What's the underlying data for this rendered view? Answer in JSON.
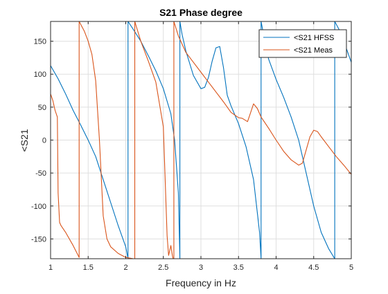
{
  "chart_data": {
    "type": "line",
    "title": "S21 Phase degree",
    "xlabel": "Frequency in Hz",
    "ylabel": "<S21",
    "xlim": [
      1,
      5
    ],
    "ylim": [
      -180,
      180
    ],
    "xticks": [
      1,
      1.5,
      2,
      2.5,
      3,
      3.5,
      4,
      4.5,
      5
    ],
    "yticks": [
      -150,
      -100,
      -50,
      0,
      50,
      100,
      150
    ],
    "xtick_labels": [
      "1",
      "1.5",
      "2",
      "2.5",
      "3",
      "3.5",
      "4",
      "4.5",
      "5"
    ],
    "ytick_labels": [
      "-150",
      "-100",
      "-50",
      "0",
      "50",
      "100",
      "150"
    ],
    "grid": true,
    "legend_position": "top-right",
    "series": [
      {
        "name": "<S21 HFSS",
        "color": "#0072BD",
        "x": [
          1.0,
          1.1,
          1.2,
          1.3,
          1.4,
          1.5,
          1.6,
          1.7,
          1.8,
          1.9,
          2.0,
          2.03,
          2.03,
          2.1,
          2.2,
          2.3,
          2.4,
          2.5,
          2.6,
          2.65,
          2.7,
          2.72,
          2.72,
          2.75,
          2.8,
          2.9,
          3.0,
          3.05,
          3.1,
          3.15,
          3.2,
          3.25,
          3.3,
          3.35,
          3.4,
          3.5,
          3.6,
          3.7,
          3.78,
          3.8,
          3.8,
          3.85,
          3.9,
          4.0,
          4.1,
          4.2,
          4.3,
          4.4,
          4.5,
          4.6,
          4.7,
          4.78,
          4.78,
          4.85,
          4.9,
          5.0
        ],
        "y": [
          113,
          93,
          70,
          45,
          23,
          0,
          -25,
          -60,
          -95,
          -130,
          -162,
          -180,
          180,
          168,
          150,
          128,
          105,
          78,
          40,
          0,
          -80,
          -180,
          180,
          160,
          135,
          98,
          78,
          80,
          95,
          120,
          140,
          142,
          110,
          68,
          52,
          25,
          -10,
          -60,
          -140,
          -180,
          180,
          150,
          123,
          92,
          65,
          35,
          0,
          -50,
          -100,
          -140,
          -165,
          -180,
          180,
          165,
          150,
          118
        ]
      },
      {
        "name": "<S21 Meas",
        "color": "#D95319",
        "x": [
          1.0,
          1.03,
          1.06,
          1.09,
          1.1,
          1.12,
          1.14,
          1.2,
          1.3,
          1.38,
          1.38,
          1.45,
          1.5,
          1.55,
          1.6,
          1.65,
          1.7,
          1.75,
          1.8,
          1.9,
          2.0,
          2.1,
          2.12,
          2.12,
          2.2,
          2.3,
          2.4,
          2.5,
          2.55,
          2.57,
          2.6,
          2.62,
          2.63,
          2.64,
          2.64,
          2.7,
          2.8,
          2.9,
          3.0,
          3.1,
          3.2,
          3.3,
          3.4,
          3.5,
          3.55,
          3.62,
          3.65,
          3.7,
          3.75,
          3.8,
          3.9,
          4.0,
          4.1,
          4.2,
          4.3,
          4.35,
          4.4,
          4.45,
          4.5,
          4.55,
          4.6,
          4.7,
          4.8,
          4.9,
          5.0
        ],
        "y": [
          70,
          60,
          45,
          35,
          -80,
          -125,
          -130,
          -140,
          -160,
          -178,
          180,
          165,
          150,
          130,
          90,
          0,
          -115,
          -150,
          -162,
          -172,
          -178,
          -180,
          -180,
          180,
          150,
          120,
          88,
          20,
          -145,
          -175,
          -160,
          -175,
          -180,
          -180,
          180,
          158,
          133,
          118,
          103,
          88,
          73,
          58,
          42,
          34,
          33,
          28,
          38,
          55,
          48,
          35,
          18,
          0,
          -17,
          -30,
          -38,
          -35,
          -15,
          5,
          15,
          13,
          5,
          -10,
          -25,
          -38,
          -52
        ]
      }
    ]
  }
}
